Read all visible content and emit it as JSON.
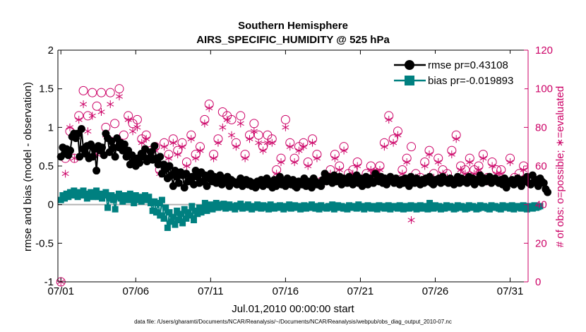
{
  "chart_data": {
    "type": "line",
    "title": "Southern Hemisphere",
    "subtitle": "AIRS_SPECIFIC_HUMIDITY @ 525 hPa",
    "xlabel": "Jul.01,2010 00:00:00 start",
    "ylabel": "rmse and bias (model - observation)",
    "y2label": "# of obs: o=possible; ∗=evaluated",
    "footer": "data file: /Users/gharamti/Documents/NCAR/Reanalysis/~/Documents/NCAR/Reanalysis/webpub/obs_diag_output_2010-07.nc",
    "xlim": [
      0.8,
      32.2
    ],
    "ylim": [
      -1,
      2
    ],
    "y2lim": [
      0,
      120
    ],
    "xticks": [
      1,
      6,
      11,
      16,
      21,
      26,
      31
    ],
    "xticklabels": [
      "07/01",
      "07/06",
      "07/11",
      "07/16",
      "07/21",
      "07/26",
      "07/31"
    ],
    "yticks": [
      -1,
      -0.5,
      0,
      0.5,
      1,
      1.5,
      2
    ],
    "yticklabels": [
      "-1",
      "-0.5",
      "0",
      "0.5",
      "1",
      "1.5",
      "2"
    ],
    "y2ticks": [
      0,
      20,
      40,
      60,
      80,
      100,
      120
    ],
    "y2ticklabels": [
      "0",
      "20",
      "40",
      "60",
      "80",
      "100",
      "120"
    ],
    "legend": {
      "position": "top-right",
      "entries": [
        "rmse pr=0.43108",
        "bias pr=-0.019893"
      ]
    },
    "colors": {
      "rmse": "#000000",
      "bias": "#008080",
      "obs": "#cc0066",
      "zero_line": "#b3b3b3",
      "axis": "#000000",
      "right_axis": "#cc0066"
    },
    "x_step_days": 0.125,
    "x_start": 1.0,
    "series": [
      {
        "name": "rmse",
        "values": [
          0.62,
          0.74,
          0.66,
          0.72,
          0.64,
          0.7,
          0.88,
          0.92,
          0.86,
          0.92,
          0.62,
          0.98,
          0.72,
          0.66,
          0.76,
          0.6,
          0.78,
          0.62,
          0.72,
          0.44,
          0.76,
          0.7,
          0.74,
          0.64,
          0.92,
          0.86,
          0.68,
          0.82,
          0.74,
          0.62,
          0.86,
          0.74,
          0.8,
          0.7,
          0.78,
          0.62,
          0.7,
          0.52,
          0.64,
          0.58,
          0.5,
          0.6,
          0.54,
          0.66,
          0.62,
          0.72,
          0.56,
          0.6,
          0.68,
          0.58,
          0.76,
          0.6,
          0.52,
          0.62,
          0.4,
          0.52,
          0.46,
          0.34,
          0.5,
          0.38,
          0.24,
          0.44,
          0.36,
          0.28,
          0.42,
          0.38,
          0.22,
          0.4,
          0.3,
          0.32,
          0.36,
          0.26,
          0.44,
          0.36,
          0.28,
          0.42,
          0.3,
          0.38,
          0.24,
          0.34,
          0.4,
          0.3,
          0.36,
          0.28,
          0.32,
          0.38,
          0.26,
          0.34,
          0.3,
          0.36,
          0.24,
          0.32,
          0.3,
          0.28,
          0.26,
          0.3,
          0.34,
          0.24,
          0.28,
          0.32,
          0.26,
          0.3,
          0.24,
          0.28,
          0.22,
          0.3,
          0.26,
          0.32,
          0.24,
          0.28,
          0.34,
          0.26,
          0.3,
          0.22,
          0.32,
          0.24,
          0.28,
          0.36,
          0.26,
          0.3,
          0.24,
          0.34,
          0.28,
          0.26,
          0.32,
          0.24,
          0.22,
          0.3,
          0.28,
          0.26,
          0.34,
          0.24,
          0.3,
          0.28,
          0.22,
          0.34,
          0.3,
          0.26,
          0.28,
          0.24,
          0.32,
          0.4,
          0.3,
          0.36,
          0.34,
          0.28,
          0.38,
          0.3,
          0.32,
          0.36,
          0.26,
          0.34,
          0.3,
          0.28,
          0.36,
          0.32,
          0.26,
          0.3,
          0.38,
          0.28,
          0.34,
          0.24,
          0.32,
          0.36,
          0.26,
          0.34,
          0.3,
          0.28,
          0.4,
          0.32,
          0.3,
          0.36,
          0.28,
          0.34,
          0.26,
          0.3,
          0.36,
          0.32,
          0.28,
          0.34,
          0.3,
          0.26,
          0.32,
          0.28,
          0.34,
          0.3,
          0.24,
          0.36,
          0.32,
          0.28,
          0.34,
          0.3,
          0.26,
          0.32,
          0.28,
          0.34,
          0.3,
          0.36,
          0.28,
          0.26,
          0.32,
          0.3,
          0.34,
          0.28,
          0.36,
          0.3,
          0.32,
          0.28,
          0.34,
          0.3,
          0.26,
          0.32,
          0.36,
          0.28,
          0.34,
          0.3,
          0.32,
          0.28,
          0.36,
          0.3,
          0.34,
          0.26,
          0.32,
          0.3,
          0.38,
          0.28,
          0.34,
          0.3,
          0.32,
          0.36,
          0.28,
          0.32,
          0.34,
          0.3,
          0.28,
          0.32,
          0.26,
          0.34,
          0.22,
          0.3,
          0.28,
          0.32,
          0.26,
          0.3,
          0.34,
          0.28,
          0.24,
          0.32,
          0.3,
          0.36,
          0.28,
          0.26,
          0.38,
          0.3,
          0.32,
          0.24,
          0.34,
          0.3,
          0.28,
          0.2,
          0.16
        ]
      },
      {
        "name": "bias",
        "values": [
          0.06,
          0.12,
          0.08,
          0.14,
          0.1,
          0.16,
          0.12,
          0.18,
          0.14,
          0.1,
          0.16,
          0.12,
          0.18,
          0.14,
          0.08,
          0.12,
          0.16,
          0.1,
          0.14,
          0.18,
          0.1,
          0.14,
          0.08,
          0.12,
          0.16,
          -0.04,
          0.08,
          0.12,
          0.06,
          -0.06,
          0.1,
          0.14,
          0.08,
          0.04,
          0.12,
          0.1,
          0.06,
          0.14,
          0.08,
          0.02,
          0.12,
          0.06,
          0.1,
          0.04,
          0.08,
          0.12,
          0.06,
          0.1,
          0.02,
          -0.08,
          0.04,
          -0.1,
          0.02,
          -0.14,
          0.06,
          -0.18,
          -0.04,
          -0.3,
          -0.1,
          -0.22,
          -0.16,
          -0.26,
          -0.08,
          -0.2,
          -0.12,
          -0.24,
          -0.06,
          -0.18,
          -0.1,
          -0.14,
          -0.02,
          -0.2,
          -0.08,
          -0.12,
          -0.04,
          -0.1,
          -0.06,
          0.02,
          -0.08,
          -0.04,
          0.0,
          -0.06,
          -0.02,
          0.02,
          -0.04,
          0.0,
          -0.03,
          0.01,
          -0.05,
          -0.02,
          0.0,
          -0.04,
          -0.02,
          -0.06,
          -0.01,
          -0.03,
          0.01,
          -0.05,
          -0.02,
          -0.04,
          0.0,
          -0.03,
          -0.06,
          -0.02,
          -0.04,
          0.0,
          -0.03,
          -0.05,
          -0.01,
          -0.04,
          -0.02,
          -0.06,
          0.0,
          -0.03,
          -0.05,
          -0.02,
          -0.04,
          -0.01,
          -0.03,
          -0.06,
          -0.02,
          -0.04,
          0.0,
          -0.05,
          -0.03,
          -0.01,
          -0.04,
          -0.02,
          -0.06,
          -0.03,
          -0.01,
          -0.05,
          -0.02,
          -0.04,
          0.0,
          -0.03,
          -0.05,
          -0.02,
          -0.06,
          -0.01,
          -0.04,
          -0.03,
          -0.05,
          -0.02,
          -0.04,
          0.0,
          -0.06,
          -0.03,
          -0.01,
          -0.04,
          -0.02,
          -0.05,
          -0.03,
          -0.06,
          -0.01,
          -0.04,
          -0.02,
          -0.03,
          -0.05,
          0.0,
          -0.04,
          -0.02,
          -0.06,
          -0.03,
          -0.01,
          -0.04,
          -0.05,
          -0.02,
          -0.03,
          -0.06,
          -0.01,
          -0.04,
          -0.02,
          -0.05,
          -0.03,
          -0.01,
          -0.06,
          -0.04,
          -0.02,
          -0.03,
          -0.05,
          -0.01,
          -0.04,
          -0.06,
          -0.02,
          -0.03,
          -0.05,
          -0.01,
          -0.04,
          -0.02,
          -0.06,
          -0.03,
          -0.01,
          -0.05,
          -0.04,
          -0.02,
          -0.06,
          0.02,
          -0.03,
          -0.05,
          -0.01,
          -0.04,
          -0.02,
          -0.06,
          -0.03,
          -0.05,
          -0.01,
          -0.04,
          -0.02,
          -0.03,
          -0.06,
          -0.05,
          -0.01,
          -0.04,
          -0.02,
          -0.03,
          -0.06,
          -0.05,
          -0.01,
          -0.04,
          -0.02,
          -0.03,
          -0.06,
          -0.05,
          -0.01,
          -0.04,
          -0.02,
          -0.03,
          -0.05,
          -0.06,
          -0.01,
          -0.04,
          -0.02,
          -0.03,
          -0.05,
          -0.06,
          -0.01,
          -0.04,
          -0.02,
          -0.03,
          -0.05,
          -0.01,
          -0.06,
          -0.04,
          -0.02,
          -0.03,
          -0.05,
          -0.01,
          -0.04,
          -0.06,
          -0.02,
          -0.03,
          -0.05,
          -0.01,
          -0.04,
          -0.03,
          -0.02
        ]
      },
      {
        "name": "obs_possible",
        "axis": "right",
        "x": [
          1.0,
          1.3,
          1.6,
          1.9,
          2.2,
          2.5,
          2.8,
          3.1,
          3.4,
          3.7,
          4.0,
          4.3,
          4.6,
          4.9,
          5.2,
          5.5,
          5.8,
          6.1,
          6.4,
          6.7,
          7.0,
          7.3,
          7.6,
          7.9,
          8.2,
          8.5,
          8.8,
          9.1,
          9.4,
          9.7,
          10.0,
          10.3,
          10.6,
          10.9,
          11.2,
          11.5,
          11.8,
          12.1,
          12.4,
          12.7,
          13.0,
          13.3,
          13.6,
          13.9,
          14.2,
          14.5,
          14.8,
          15.1,
          15.4,
          15.7,
          16.0,
          16.3,
          16.6,
          16.9,
          17.2,
          17.5,
          17.8,
          18.1,
          18.4,
          18.7,
          19.0,
          19.3,
          19.6,
          19.9,
          20.2,
          20.5,
          20.8,
          21.1,
          21.4,
          21.7,
          22.0,
          22.3,
          22.6,
          22.9,
          23.2,
          23.5,
          23.8,
          24.1,
          24.4,
          24.7,
          25.0,
          25.3,
          25.6,
          25.9,
          26.2,
          26.5,
          26.8,
          27.1,
          27.4,
          27.7,
          28.0,
          28.3,
          28.6,
          28.9,
          29.2,
          29.5,
          29.8,
          30.1,
          30.4,
          30.7,
          31.0,
          31.3,
          31.6,
          31.9
        ],
        "values": [
          0,
          64,
          78,
          64,
          86,
          99,
          86,
          98,
          91,
          98,
          80,
          98,
          82,
          100,
          76,
          86,
          82,
          84,
          74,
          76,
          68,
          70,
          58,
          72,
          66,
          74,
          68,
          72,
          62,
          76,
          66,
          70,
          84,
          92,
          66,
          74,
          88,
          86,
          84,
          72,
          86,
          66,
          76,
          82,
          76,
          70,
          76,
          74,
          58,
          64,
          84,
          72,
          64,
          70,
          72,
          62,
          74,
          66,
          52,
          54,
          58,
          66,
          60,
          70,
          56,
          58,
          62,
          52,
          56,
          60,
          56,
          60,
          72,
          86,
          74,
          78,
          58,
          64,
          70,
          56,
          54,
          62,
          68,
          56,
          64,
          58,
          56,
          68,
          76,
          60,
          58,
          64,
          58,
          60,
          66,
          54,
          62,
          58,
          58,
          52,
          64,
          54,
          56,
          60
        ]
      },
      {
        "name": "obs_evaluated",
        "axis": "right",
        "x": [
          1.0,
          1.3,
          1.6,
          1.9,
          2.2,
          2.5,
          2.8,
          3.1,
          3.4,
          3.7,
          4.0,
          4.3,
          4.6,
          4.9,
          5.2,
          5.5,
          5.8,
          6.1,
          6.4,
          6.7,
          7.0,
          7.3,
          7.6,
          7.9,
          8.2,
          8.5,
          8.8,
          9.1,
          9.4,
          9.7,
          10.0,
          10.3,
          10.6,
          10.9,
          11.2,
          11.5,
          11.8,
          12.1,
          12.4,
          12.7,
          13.0,
          13.3,
          13.6,
          13.9,
          14.2,
          14.5,
          14.8,
          15.1,
          15.4,
          15.7,
          16.0,
          16.3,
          16.6,
          16.9,
          17.2,
          17.5,
          17.8,
          18.1,
          18.4,
          18.7,
          19.0,
          19.3,
          19.6,
          19.9,
          20.2,
          20.5,
          20.8,
          21.1,
          21.4,
          21.7,
          22.0,
          22.3,
          22.6,
          22.9,
          23.2,
          23.5,
          23.8,
          24.1,
          24.4,
          24.7,
          25.0,
          25.3,
          25.6,
          25.9,
          26.2,
          26.5,
          26.8,
          27.1,
          27.4,
          27.7,
          28.0,
          28.3,
          28.6,
          28.9,
          29.2,
          29.5,
          29.8,
          30.1,
          30.4,
          30.7,
          31.0,
          31.3,
          31.6,
          31.9
        ],
        "values": [
          0,
          56,
          80,
          64,
          84,
          92,
          78,
          86,
          66,
          88,
          76,
          92,
          74,
          96,
          70,
          84,
          78,
          80,
          72,
          74,
          66,
          68,
          56,
          70,
          64,
          72,
          66,
          70,
          60,
          74,
          64,
          68,
          82,
          90,
          64,
          72,
          80,
          84,
          76,
          70,
          82,
          64,
          74,
          78,
          72,
          68,
          72,
          72,
          56,
          62,
          80,
          70,
          62,
          68,
          70,
          60,
          72,
          64,
          50,
          52,
          56,
          64,
          58,
          68,
          54,
          56,
          60,
          50,
          54,
          58,
          54,
          58,
          70,
          84,
          72,
          76,
          56,
          62,
          32,
          54,
          52,
          60,
          66,
          54,
          62,
          56,
          54,
          66,
          74,
          58,
          56,
          62,
          56,
          58,
          64,
          52,
          60,
          56,
          56,
          50,
          62,
          52,
          54,
          58
        ]
      }
    ]
  }
}
